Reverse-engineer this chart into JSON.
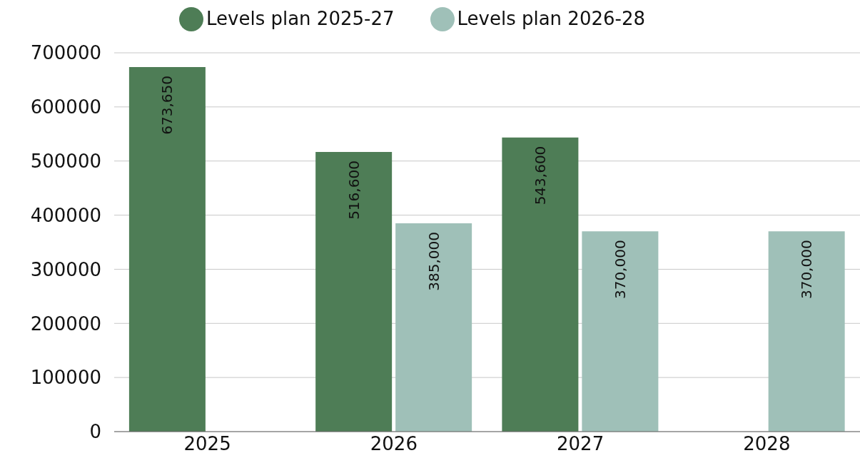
{
  "chart_data": {
    "type": "bar",
    "categories": [
      "2025",
      "2026",
      "2027",
      "2028"
    ],
    "series": [
      {
        "name": "Levels plan 2025-27",
        "color": "#4e7d56",
        "values": [
          673650,
          516600,
          543600,
          null
        ],
        "value_labels": [
          "673,650",
          "516,600",
          "543,600",
          null
        ]
      },
      {
        "name": "Levels plan 2026-28",
        "color": "#9fc0b8",
        "values": [
          null,
          385000,
          370000,
          370000
        ],
        "value_labels": [
          null,
          "385,000",
          "370,000",
          "370,000"
        ]
      }
    ],
    "ylim": [
      0,
      700000
    ],
    "yticks": [
      0,
      100000,
      200000,
      300000,
      400000,
      500000,
      600000,
      700000
    ],
    "grid": "y",
    "legend": "top"
  }
}
